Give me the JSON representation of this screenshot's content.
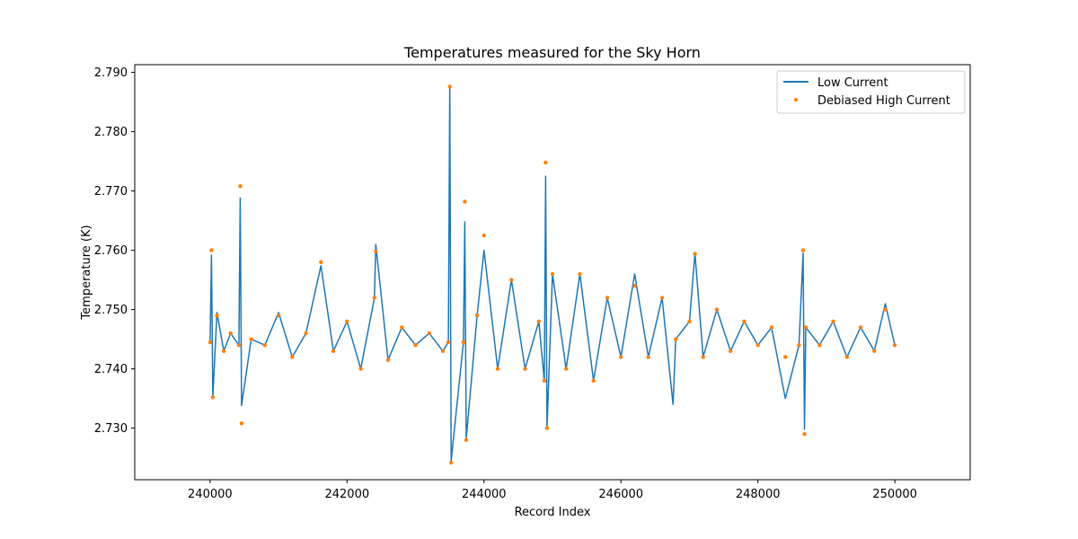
{
  "chart_data": {
    "type": "line",
    "title": "Temperatures measured for the Sky Horn",
    "xlabel": "Record Index",
    "ylabel": "Temperature (K)",
    "xlim": [
      238900,
      251100
    ],
    "ylim": [
      2.7213,
      2.7913
    ],
    "xticks": [
      240000,
      242000,
      244000,
      246000,
      248000,
      250000
    ],
    "xtick_labels": [
      "240000",
      "242000",
      "244000",
      "246000",
      "248000",
      "250000"
    ],
    "yticks": [
      2.73,
      2.74,
      2.75,
      2.76,
      2.77,
      2.78,
      2.79
    ],
    "ytick_labels": [
      "2.730",
      "2.740",
      "2.750",
      "2.760",
      "2.770",
      "2.780",
      "2.790"
    ],
    "legend": {
      "position": "top-right"
    },
    "baseline": 2.7445,
    "series": [
      {
        "name": "Low Current",
        "kind": "line",
        "color": "#1f77b4",
        "x": [
          240000,
          240020,
          240040,
          240100,
          240200,
          240300,
          240420,
          240440,
          240460,
          240600,
          240800,
          241000,
          241200,
          241400,
          241620,
          241800,
          242000,
          242200,
          242400,
          242420,
          242600,
          242800,
          243000,
          243200,
          243400,
          243480,
          243500,
          243520,
          243700,
          243720,
          243740,
          243900,
          244000,
          244200,
          244400,
          244600,
          244800,
          244880,
          244900,
          244920,
          245000,
          245200,
          245400,
          245600,
          245800,
          246000,
          246200,
          246400,
          246600,
          246760,
          246800,
          247000,
          247080,
          247200,
          247400,
          247600,
          247800,
          248000,
          248200,
          248400,
          248600,
          248660,
          248680,
          248700,
          248900,
          249100,
          249300,
          249500,
          249700,
          249860,
          250000
        ],
        "y": [
          2.7445,
          2.7592,
          2.7352,
          2.7495,
          2.743,
          2.746,
          2.744,
          2.7688,
          2.7338,
          2.745,
          2.744,
          2.7495,
          2.742,
          2.746,
          2.7574,
          2.743,
          2.748,
          2.74,
          2.752,
          2.761,
          2.7415,
          2.747,
          2.744,
          2.746,
          2.743,
          2.7445,
          2.7878,
          2.7245,
          2.7445,
          2.7648,
          2.7282,
          2.749,
          2.76,
          2.74,
          2.755,
          2.74,
          2.748,
          2.738,
          2.7725,
          2.73,
          2.756,
          2.74,
          2.756,
          2.738,
          2.752,
          2.742,
          2.756,
          2.742,
          2.752,
          2.734,
          2.745,
          2.748,
          2.7595,
          2.742,
          2.75,
          2.743,
          2.748,
          2.744,
          2.747,
          2.735,
          2.744,
          2.7595,
          2.7298,
          2.747,
          2.744,
          2.748,
          2.742,
          2.747,
          2.743,
          2.751,
          2.744
        ]
      },
      {
        "name": "Debiased High Current",
        "kind": "scatter",
        "color": "#ff7f0e",
        "x": [
          240000,
          240020,
          240040,
          240100,
          240200,
          240300,
          240420,
          240440,
          240460,
          240600,
          240800,
          241000,
          241200,
          241400,
          241620,
          241800,
          242000,
          242200,
          242400,
          242420,
          242600,
          242800,
          243000,
          243200,
          243400,
          243480,
          243500,
          243520,
          243700,
          243720,
          243740,
          243900,
          244000,
          244200,
          244400,
          244600,
          244800,
          244880,
          244900,
          244920,
          245000,
          245200,
          245400,
          245600,
          245800,
          246000,
          246200,
          246400,
          246600,
          246800,
          247000,
          247080,
          247200,
          247400,
          247600,
          247800,
          248000,
          248200,
          248400,
          248600,
          248660,
          248680,
          248700,
          248900,
          249100,
          249300,
          249500,
          249700,
          249860,
          250000
        ],
        "y": [
          2.7445,
          2.76,
          2.7352,
          2.749,
          2.743,
          2.746,
          2.744,
          2.7708,
          2.7308,
          2.745,
          2.744,
          2.749,
          2.742,
          2.746,
          2.758,
          2.743,
          2.748,
          2.74,
          2.752,
          2.7598,
          2.7415,
          2.747,
          2.744,
          2.746,
          2.743,
          2.7445,
          2.7876,
          2.7242,
          2.7445,
          2.7682,
          2.728,
          2.749,
          2.7625,
          2.74,
          2.755,
          2.74,
          2.748,
          2.738,
          2.7748,
          2.73,
          2.756,
          2.74,
          2.756,
          2.738,
          2.752,
          2.742,
          2.754,
          2.742,
          2.752,
          2.745,
          2.748,
          2.7594,
          2.742,
          2.75,
          2.743,
          2.748,
          2.744,
          2.747,
          2.742,
          2.744,
          2.76,
          2.729,
          2.747,
          2.744,
          2.748,
          2.742,
          2.747,
          2.743,
          2.75,
          2.744
        ]
      }
    ]
  }
}
